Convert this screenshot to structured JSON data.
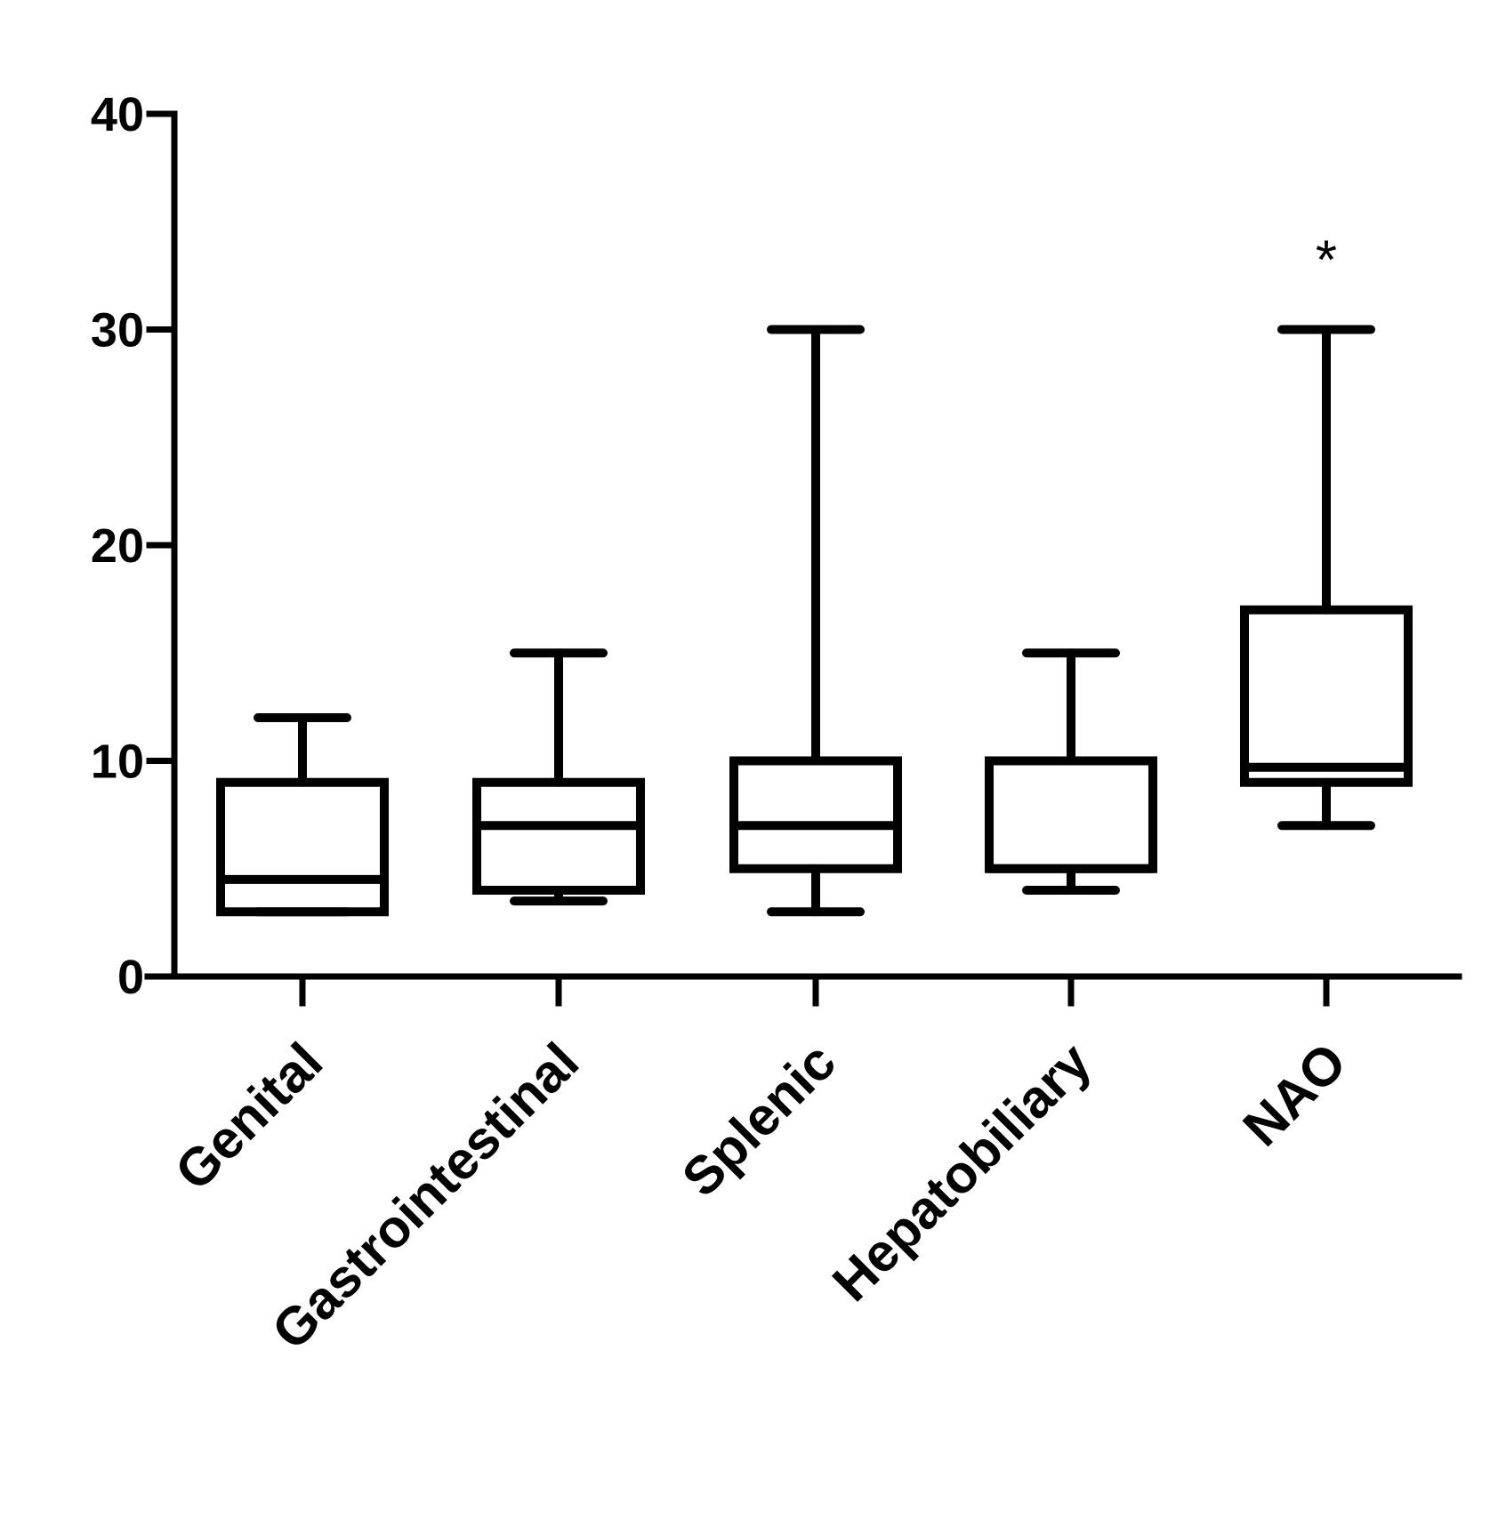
{
  "chart_data": {
    "type": "box",
    "categories": [
      "Genital",
      "Gastrointestinal",
      "Splenic",
      "Hepatobiliary",
      "NAO"
    ],
    "boxes": [
      {
        "category": "Genital",
        "min": 3,
        "q1": 3,
        "median": 4.5,
        "q3": 9,
        "max": 12
      },
      {
        "category": "Gastrointestinal",
        "min": 3.5,
        "q1": 4,
        "median": 7,
        "q3": 9,
        "max": 15
      },
      {
        "category": "Splenic",
        "min": 3,
        "q1": 5,
        "median": 7,
        "q3": 10,
        "max": 30
      },
      {
        "category": "Hepatobiliary",
        "min": 4,
        "q1": 5,
        "median": 5,
        "q3": 10,
        "max": 15
      },
      {
        "category": "NAO",
        "min": 7,
        "q1": 9,
        "median": 9.7,
        "q3": 17,
        "max": 30
      }
    ],
    "annotations": [
      {
        "category": "NAO",
        "text": "*",
        "y": 34
      }
    ],
    "yticks": [
      "0",
      "10",
      "20",
      "30",
      "40"
    ],
    "ylim": [
      0,
      40
    ],
    "title": "",
    "xlabel": "",
    "ylabel": "",
    "grid": false,
    "legend": "none",
    "color": "#000000"
  }
}
